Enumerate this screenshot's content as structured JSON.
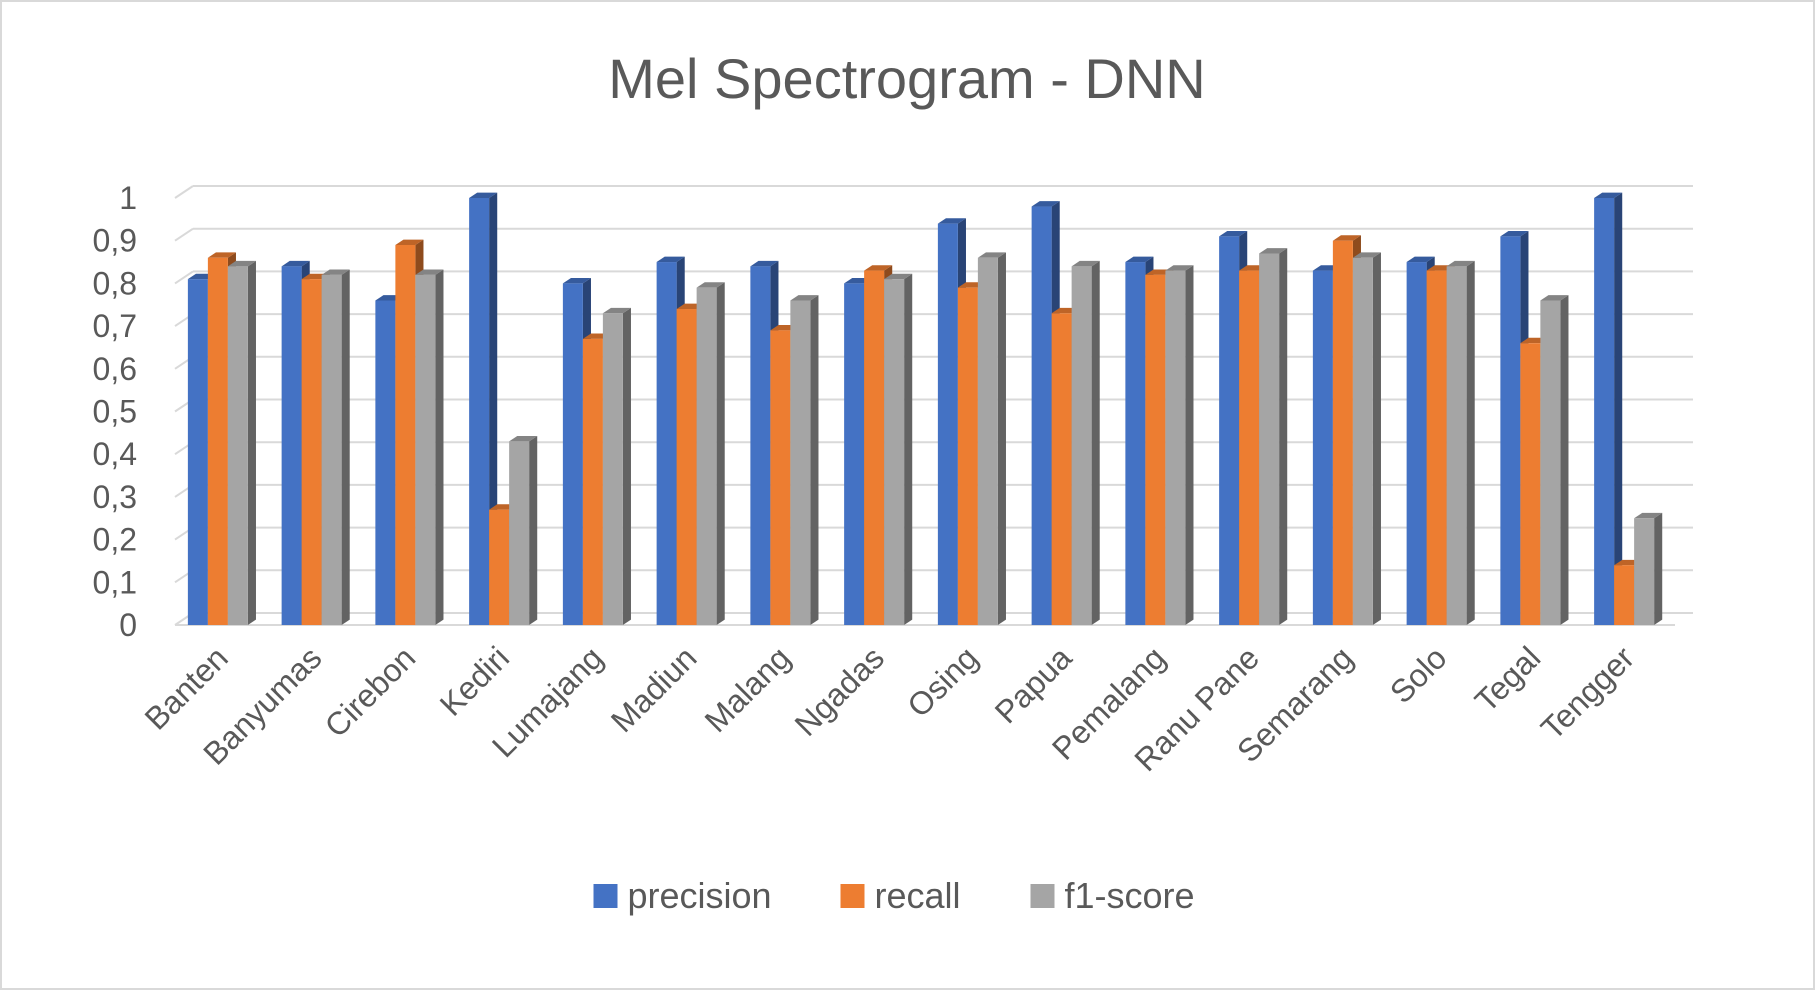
{
  "chart_data": {
    "type": "bar",
    "title": "Mel Spectrogram - DNN",
    "xlabel": "",
    "ylabel": "",
    "ylim": [
      0,
      1
    ],
    "yticks": [
      "0",
      "0,1",
      "0,2",
      "0,3",
      "0,4",
      "0,5",
      "0,6",
      "0,7",
      "0,8",
      "0,9",
      "1"
    ],
    "categories": [
      "Banten",
      "Banyumas",
      "Cirebon",
      "Kediri",
      "Lumajang",
      "Madiun",
      "Malang",
      "Ngadas",
      "Osing",
      "Papua",
      "Pemalang",
      "Ranu Pane",
      "Semarang",
      "Solo",
      "Tegal",
      "Tengger"
    ],
    "series": [
      {
        "name": "precision",
        "color": "#4472c4",
        "values": [
          0.81,
          0.84,
          0.76,
          1.0,
          0.8,
          0.85,
          0.84,
          0.8,
          0.94,
          0.98,
          0.85,
          0.91,
          0.83,
          0.85,
          0.91,
          1.0
        ]
      },
      {
        "name": "recall",
        "color": "#ed7d31",
        "values": [
          0.86,
          0.81,
          0.89,
          0.27,
          0.67,
          0.74,
          0.69,
          0.83,
          0.79,
          0.73,
          0.82,
          0.83,
          0.9,
          0.83,
          0.66,
          0.14
        ]
      },
      {
        "name": "f1-score",
        "color": "#a5a5a5",
        "values": [
          0.84,
          0.82,
          0.82,
          0.43,
          0.73,
          0.79,
          0.76,
          0.81,
          0.86,
          0.84,
          0.83,
          0.87,
          0.86,
          0.84,
          0.76,
          0.25
        ]
      }
    ],
    "grid": true,
    "legend": "bottom",
    "style": "3d-clustered-column"
  }
}
